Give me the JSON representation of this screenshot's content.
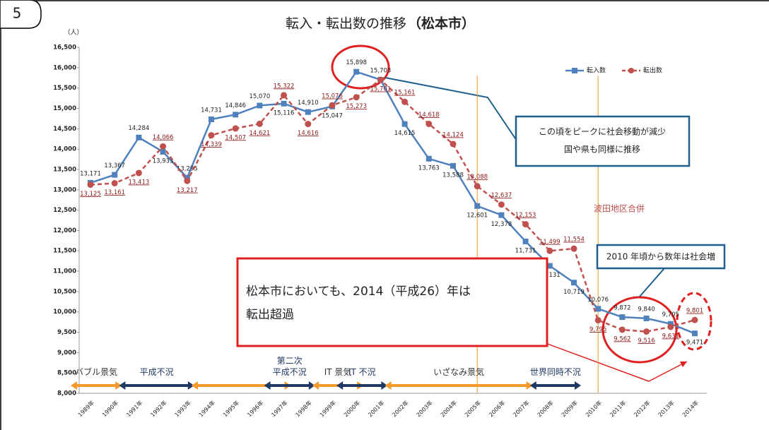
{
  "page_number": "5",
  "chart_data": {
    "type": "line",
    "title": "転入・転出数の推移",
    "subtitle": "（松本市）",
    "y_unit": "（人）",
    "categories": [
      "1989年",
      "1990年",
      "1991年",
      "1992年",
      "1993年",
      "1994年",
      "1995年",
      "1996年",
      "1997年",
      "1998年",
      "1999年",
      "2000年",
      "2001年",
      "2002年",
      "2003年",
      "2004年",
      "2005年",
      "2006年",
      "2007年",
      "2008年",
      "2009年",
      "2010年",
      "2011年",
      "2012年",
      "2013年",
      "2014年"
    ],
    "series": [
      {
        "name": "転入数",
        "color": "#4f81bd",
        "marker": "square",
        "values": [
          13171,
          13367,
          14284,
          13933,
          13295,
          14731,
          14846,
          15070,
          15116,
          14910,
          15047,
          15898,
          15703,
          14615,
          13763,
          13588,
          12601,
          12378,
          11731,
          11131,
          10719,
          10076,
          9872,
          9840,
          9705,
          9471
        ],
        "value_labels": [
          "13,171",
          "13,367",
          "14,284",
          "13,933",
          "13,295",
          "14,731",
          "14,846",
          "15,070",
          "15,116",
          "14,910",
          "15,047",
          "15,898",
          "15,703",
          "14,615",
          "13,763",
          "13,588",
          "12,601",
          "12,378",
          "11,731",
          "11,131",
          "10,719",
          "10,076",
          "9,872",
          "9,840",
          "9,705",
          "9,471"
        ]
      },
      {
        "name": "転出数",
        "color": "#c0504d",
        "marker": "circle",
        "dashed": true,
        "values": [
          13125,
          13161,
          13413,
          14066,
          13217,
          14339,
          14507,
          14621,
          15322,
          14616,
          15076,
          15273,
          15701,
          15161,
          14618,
          14124,
          13088,
          12637,
          12153,
          11499,
          11554,
          9795,
          9562,
          9516,
          9631,
          9801
        ],
        "value_labels": [
          "13,125",
          "13,161",
          "13,413",
          "14,066",
          "13,217",
          "14,339",
          "14,507",
          "14,621",
          "15,322",
          "14,616",
          "15,076",
          "15,273",
          "15,701",
          "15,161",
          "14,618",
          "14,124",
          "13,088",
          "12,637",
          "12,153",
          "11,499",
          "11,554",
          "9,795",
          "9,562",
          "9,516",
          "9,631",
          "9,801"
        ]
      }
    ],
    "ylim": [
      8000,
      16500
    ],
    "yticks": [
      {
        "value": 8000,
        "label": "8,000"
      },
      {
        "value": 8500,
        "label": "8,500"
      },
      {
        "value": 9000,
        "label": "9,000"
      },
      {
        "value": 9500,
        "label": "9,500"
      },
      {
        "value": 10000,
        "label": "10,000"
      },
      {
        "value": 10500,
        "label": "10,500"
      },
      {
        "value": 11000,
        "label": "11,000"
      },
      {
        "value": 11500,
        "label": "11,500"
      },
      {
        "value": 12000,
        "label": "12,000"
      },
      {
        "value": 12500,
        "label": "12,500"
      },
      {
        "value": 13000,
        "label": "13,000"
      },
      {
        "value": 13500,
        "label": "13,500"
      },
      {
        "value": 14000,
        "label": "14,000"
      },
      {
        "value": 14500,
        "label": "14,500"
      },
      {
        "value": 15000,
        "label": "15,000"
      },
      {
        "value": 15500,
        "label": "15,500"
      },
      {
        "value": 16000,
        "label": "16,000"
      },
      {
        "value": 16500,
        "label": "16,500"
      }
    ],
    "grid": false,
    "legend": "top-right",
    "vlines": [
      {
        "at": "2005年",
        "color": "#f39a2b"
      },
      {
        "at": "2010年",
        "color": "#f39a2b"
      }
    ],
    "periods": [
      {
        "label": "バブル景気",
        "start": "1989年",
        "end": "1990年",
        "color": "#f39a2b"
      },
      {
        "label": "平成不況",
        "start": "1991年",
        "end": "1993年",
        "color": "#1f3864"
      },
      {
        "start": "1994年",
        "end": "1997年",
        "color": "#f39a2b"
      },
      {
        "label": "第二次\n平成不況",
        "start": "1997年",
        "end": "1998年",
        "color": "#1f3864"
      },
      {
        "label": "IT 景気",
        "start": "1999年",
        "end": "2000年",
        "color": "#f39a2b"
      },
      {
        "label": "IT 不況",
        "start": "2000年",
        "end": "2001年",
        "color": "#1f3864"
      },
      {
        "label": "いざなみ景気",
        "start": "2002年",
        "end": "2007年",
        "color": "#f39a2b"
      },
      {
        "label": "世界同時不況",
        "start": "2008年",
        "end": "2009年",
        "color": "#1f3864"
      }
    ],
    "annotations": {
      "peak_note": [
        "この頃をピークに社会移動が減少",
        "国や県も同様に推移"
      ],
      "merger": "波田地区合併",
      "increase_note": "2010 年頃から数年は社会増",
      "outflow_note": [
        "松本市においても、2014（平成26）年は",
        "転出超過"
      ]
    }
  }
}
